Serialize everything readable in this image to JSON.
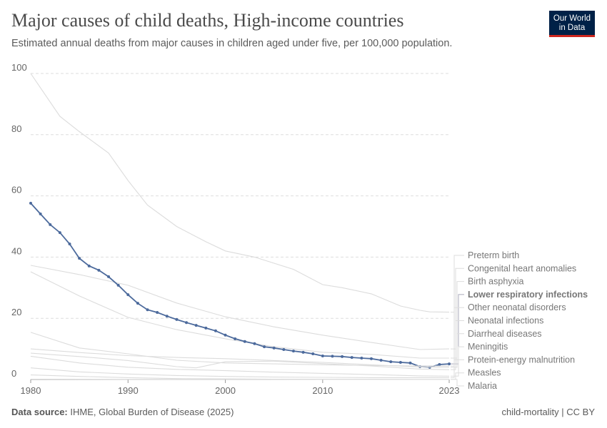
{
  "title": "Major causes of child deaths, High-income countries",
  "subtitle": "Estimated annual deaths from major causes in children aged under five, per 100,000 population.",
  "logo": {
    "line1": "Our World",
    "line2": "in Data"
  },
  "footer": {
    "source_label": "Data source:",
    "source": "IHME, Global Burden of Disease (2025)",
    "right": "child-mortality | CC BY"
  },
  "colors": {
    "highlight": "#4c6a9c",
    "muted": "#dcdcdc",
    "logo_bg": "#002147",
    "logo_accent": "#ce261e"
  },
  "chart_data": {
    "type": "line",
    "title": "Major causes of child deaths, High-income countries",
    "xlim": [
      1980,
      2023
    ],
    "ylim": [
      0,
      100
    ],
    "x_ticks": [
      "1980",
      "1990",
      "2000",
      "2010",
      "2023"
    ],
    "y_ticks": [
      "0",
      "20",
      "40",
      "60",
      "80",
      "100"
    ],
    "grid": "horizontal dashed",
    "legend": "right, line-end labels",
    "highlighted_series": "Lower respiratory infections",
    "series": [
      {
        "name": "Preterm birth",
        "x": [
          1980,
          1983,
          1985,
          1988,
          1990,
          1992,
          1995,
          1998,
          2000,
          2003,
          2005,
          2007,
          2010,
          2012,
          2015,
          2018,
          2020,
          2021,
          2023
        ],
        "values": [
          100,
          86,
          81,
          74,
          65,
          57,
          50,
          45,
          42,
          40,
          38,
          36,
          31,
          30,
          28,
          24,
          22.6,
          22.1,
          22
        ]
      },
      {
        "name": "Congenital heart anomalies",
        "x": [
          1980,
          1985,
          1990,
          1995,
          2000,
          2005,
          2010,
          2015,
          2020,
          2023
        ],
        "values": [
          37.3,
          34.3,
          30.8,
          25,
          20.5,
          17.2,
          14.5,
          12.1,
          9.8,
          10
        ]
      },
      {
        "name": "Birth asphyxia",
        "x": [
          1980,
          1985,
          1990,
          1995,
          2000,
          2005,
          2010,
          2015,
          2020,
          2023
        ],
        "values": [
          35.2,
          27.3,
          20.3,
          16.3,
          13.3,
          10.7,
          8.9,
          8.2,
          7,
          7
        ]
      },
      {
        "name": "Lower respiratory infections",
        "x": [
          1980,
          1981,
          1982,
          1983,
          1984,
          1985,
          1986,
          1987,
          1988,
          1989,
          1990,
          1991,
          1992,
          1993,
          1994,
          1995,
          1996,
          1997,
          1998,
          1999,
          2000,
          2001,
          2002,
          2003,
          2004,
          2005,
          2006,
          2007,
          2008,
          2009,
          2010,
          2011,
          2012,
          2013,
          2014,
          2015,
          2016,
          2017,
          2018,
          2019,
          2020,
          2021,
          2022,
          2023
        ],
        "values": [
          57.6,
          54.1,
          50.6,
          48,
          44.3,
          39.6,
          37.1,
          35.7,
          33.6,
          30.8,
          27.7,
          24.9,
          22.8,
          21.9,
          20.7,
          19.6,
          18.6,
          17.7,
          16.8,
          15.9,
          14.5,
          13.3,
          12.4,
          11.7,
          10.7,
          10.3,
          9.8,
          9.3,
          8.9,
          8.4,
          7.7,
          7.6,
          7.5,
          7.2,
          7,
          6.8,
          6.3,
          5.8,
          5.6,
          5.4,
          4.2,
          4,
          4.9,
          5.1
        ]
      },
      {
        "name": "Other neonatal disorders",
        "x": [
          1980,
          1985,
          1990,
          1995,
          2000,
          2005,
          2010,
          2015,
          2020,
          2023
        ],
        "values": [
          15.4,
          10.3,
          8.4,
          6.3,
          5.4,
          5.1,
          4.8,
          4.6,
          4.4,
          4.4
        ]
      },
      {
        "name": "Neonatal infections",
        "x": [
          1980,
          1985,
          1990,
          1995,
          1997,
          2000,
          2005,
          2010,
          2015,
          2020,
          2023
        ],
        "values": [
          8.6,
          7.5,
          6.2,
          4.2,
          3.8,
          5.8,
          6,
          5.2,
          4.4,
          3.4,
          3.2
        ]
      },
      {
        "name": "Diarrheal diseases",
        "x": [
          1980,
          1985,
          1990,
          1995,
          2000,
          2005,
          2010,
          2015,
          2020,
          2023
        ],
        "values": [
          10,
          8.8,
          7.8,
          7.2,
          6.8,
          6.2,
          5.6,
          4.8,
          4.1,
          4
        ]
      },
      {
        "name": "Meningitis",
        "x": [
          1980,
          1985,
          1990,
          1995,
          2000,
          2005,
          2010,
          2015,
          2020,
          2023
        ],
        "values": [
          7.6,
          5.4,
          4,
          3.3,
          2.9,
          2.4,
          2,
          1.6,
          1.2,
          1.1
        ]
      },
      {
        "name": "Protein-energy malnutrition",
        "x": [
          1980,
          1985,
          1990,
          1995,
          2000,
          2005,
          2010,
          2015,
          2020,
          2023
        ],
        "values": [
          3.8,
          2.5,
          1.8,
          1.3,
          1,
          0.8,
          0.7,
          0.6,
          0.6,
          0.6
        ]
      },
      {
        "name": "Measles",
        "x": [
          1980,
          1985,
          1990,
          1995,
          2000,
          2005,
          2010,
          2015,
          2020,
          2023
        ],
        "values": [
          1.5,
          1,
          0.6,
          0.3,
          0.2,
          0.1,
          0.1,
          0.1,
          0.05,
          0.05
        ]
      },
      {
        "name": "Malaria",
        "x": [
          1980,
          1990,
          2000,
          2010,
          2023
        ],
        "values": [
          0.1,
          0.05,
          0.05,
          0.03,
          0.02
        ]
      }
    ]
  }
}
